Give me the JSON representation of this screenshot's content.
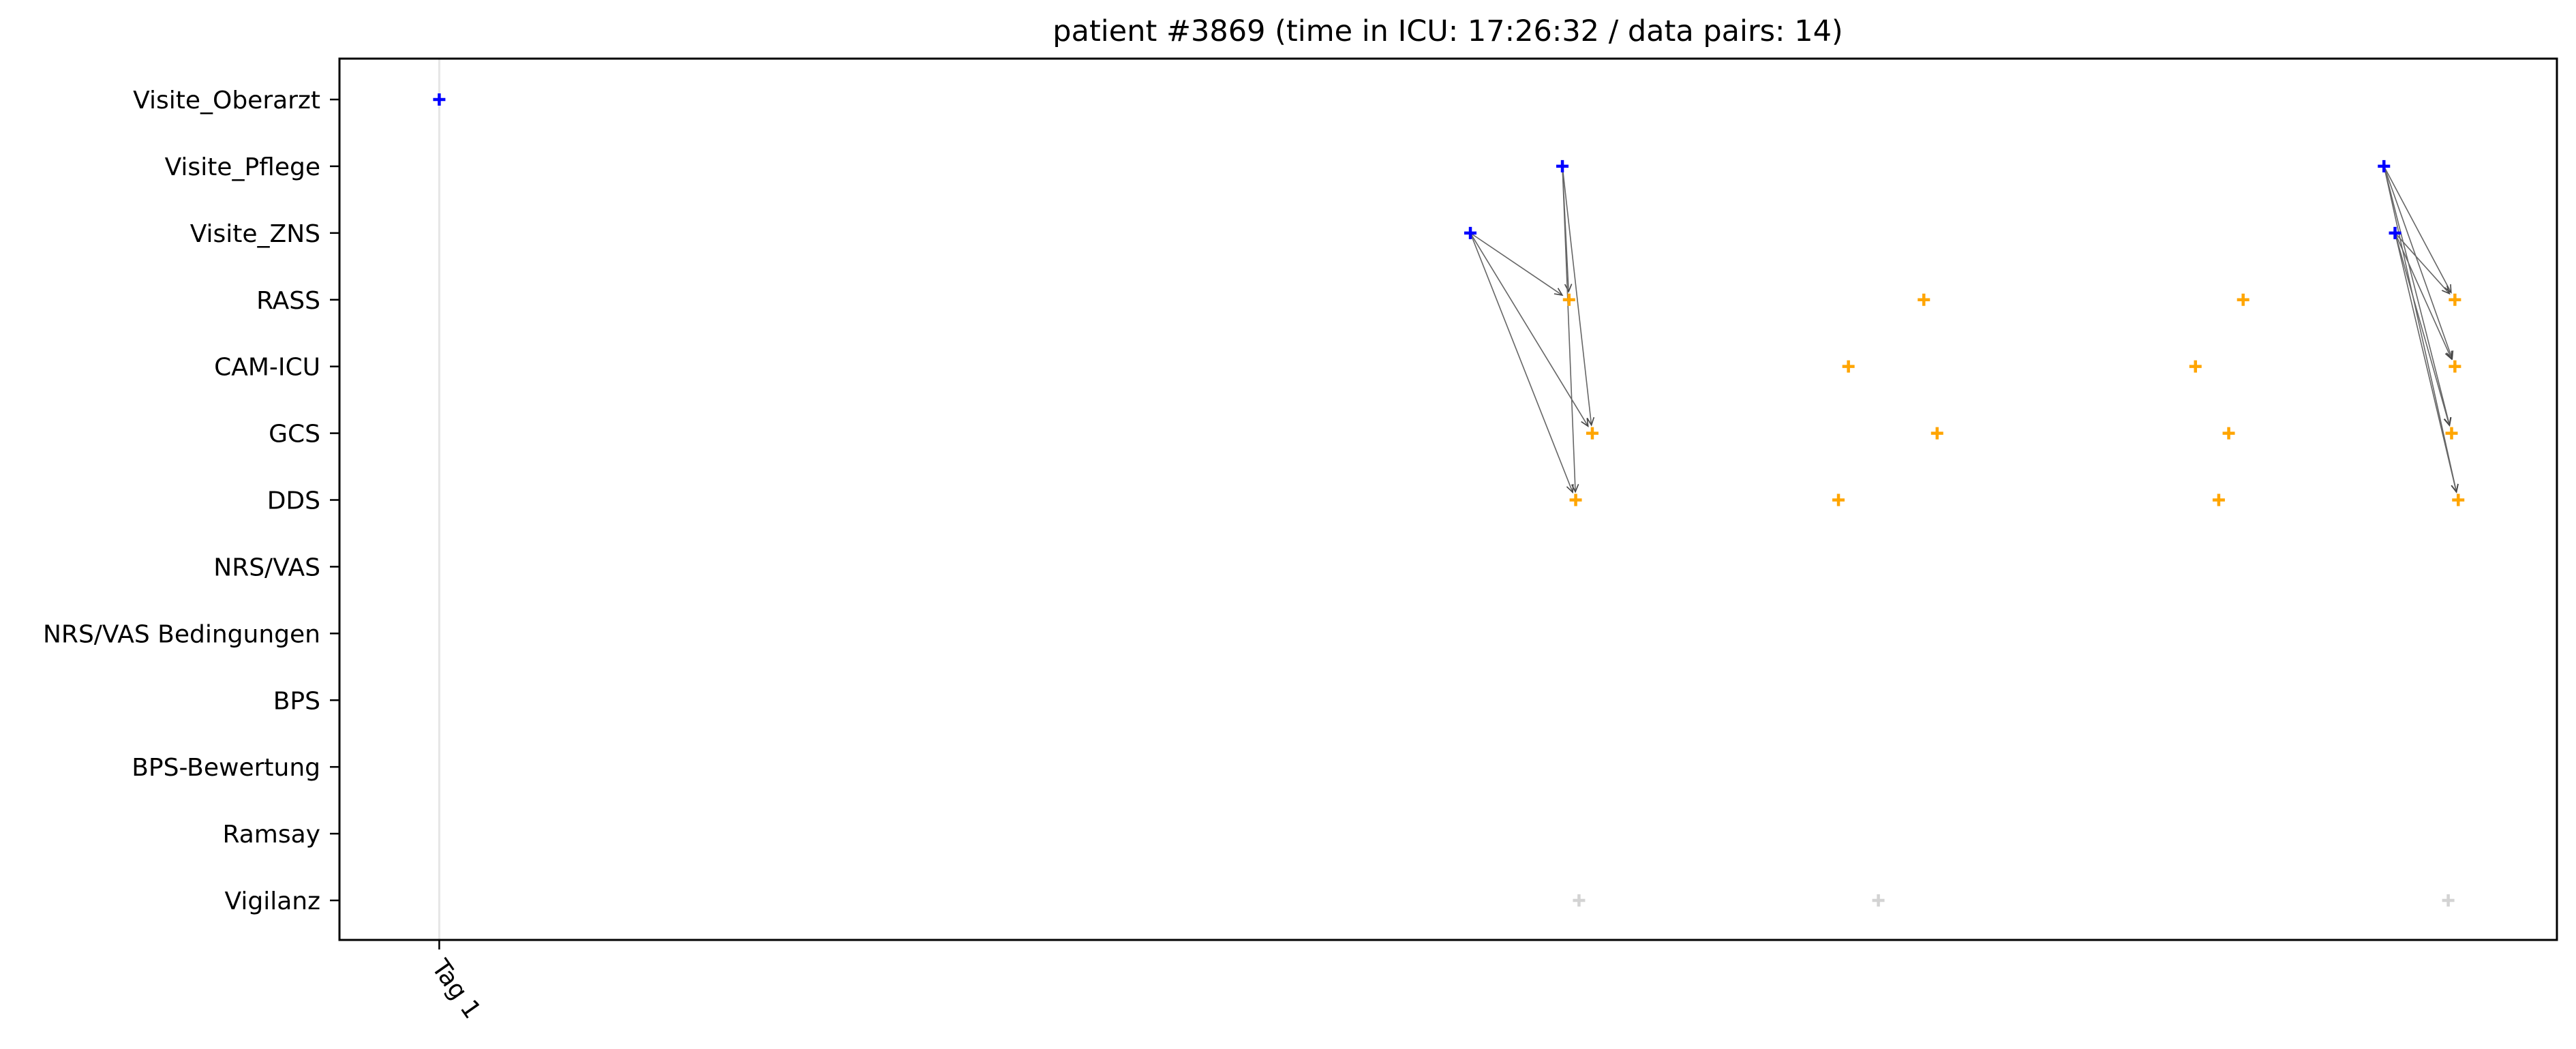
{
  "chart_data": {
    "type": "scatter",
    "title": "patient #3869 (time in ICU: 17:26:32 / data pairs: 14)",
    "xlabel": "",
    "ylabel": "",
    "x_unit": "days since ICU admission",
    "xlim": [
      -0.09,
      1.91
    ],
    "x_ticks": [
      {
        "value": 0.0,
        "label": "Tag 1"
      }
    ],
    "categories": [
      "Visite_Oberarzt",
      "Visite_Pflege",
      "Visite_ZNS",
      "RASS",
      "CAM-ICU",
      "GCS",
      "DDS",
      "NRS/VAS",
      "NRS/VAS Bedingungen",
      "BPS",
      "BPS-Bewertung",
      "Ramsay",
      "Vigilanz"
    ],
    "grid": false,
    "legend": "none",
    "vlines": [
      0.0
    ],
    "colors": {
      "visit": "#0000ff",
      "score": "#ffa500",
      "other": "#d3d3d3",
      "arrow": "#666666",
      "vline": "#e6e6e6"
    },
    "series": [
      {
        "name": "visits",
        "color": "#0000ff",
        "points": [
          {
            "x": 0.0,
            "y": "Visite_Oberarzt"
          },
          {
            "x": 1.013,
            "y": "Visite_Pflege"
          },
          {
            "x": 0.93,
            "y": "Visite_ZNS"
          },
          {
            "x": 1.754,
            "y": "Visite_Pflege"
          },
          {
            "x": 1.764,
            "y": "Visite_ZNS"
          }
        ]
      },
      {
        "name": "scores",
        "color": "#ffa500",
        "points": [
          {
            "x": 1.019,
            "y": "RASS"
          },
          {
            "x": 1.04,
            "y": "GCS"
          },
          {
            "x": 1.025,
            "y": "DDS"
          },
          {
            "x": 1.339,
            "y": "RASS"
          },
          {
            "x": 1.271,
            "y": "CAM-ICU"
          },
          {
            "x": 1.351,
            "y": "GCS"
          },
          {
            "x": 1.262,
            "y": "DDS"
          },
          {
            "x": 1.627,
            "y": "RASS"
          },
          {
            "x": 1.584,
            "y": "CAM-ICU"
          },
          {
            "x": 1.614,
            "y": "GCS"
          },
          {
            "x": 1.605,
            "y": "DDS"
          },
          {
            "x": 1.818,
            "y": "RASS"
          },
          {
            "x": 1.818,
            "y": "CAM-ICU"
          },
          {
            "x": 1.815,
            "y": "GCS"
          },
          {
            "x": 1.821,
            "y": "DDS"
          }
        ]
      },
      {
        "name": "vigilanz",
        "color": "#d3d3d3",
        "points": [
          {
            "x": 1.028,
            "y": "Vigilanz"
          },
          {
            "x": 1.298,
            "y": "Vigilanz"
          },
          {
            "x": 1.812,
            "y": "Vigilanz"
          }
        ]
      }
    ],
    "arrows": [
      {
        "from": {
          "x": 1.013,
          "y": "Visite_Pflege"
        },
        "to": {
          "x": 1.019,
          "y": "RASS"
        }
      },
      {
        "from": {
          "x": 1.013,
          "y": "Visite_Pflege"
        },
        "to": {
          "x": 1.04,
          "y": "GCS"
        }
      },
      {
        "from": {
          "x": 1.013,
          "y": "Visite_Pflege"
        },
        "to": {
          "x": 1.025,
          "y": "DDS"
        }
      },
      {
        "from": {
          "x": 0.93,
          "y": "Visite_ZNS"
        },
        "to": {
          "x": 1.019,
          "y": "RASS"
        }
      },
      {
        "from": {
          "x": 0.93,
          "y": "Visite_ZNS"
        },
        "to": {
          "x": 1.04,
          "y": "GCS"
        }
      },
      {
        "from": {
          "x": 0.93,
          "y": "Visite_ZNS"
        },
        "to": {
          "x": 1.025,
          "y": "DDS"
        }
      },
      {
        "from": {
          "x": 1.754,
          "y": "Visite_Pflege"
        },
        "to": {
          "x": 1.818,
          "y": "RASS"
        }
      },
      {
        "from": {
          "x": 1.754,
          "y": "Visite_Pflege"
        },
        "to": {
          "x": 1.818,
          "y": "CAM-ICU"
        }
      },
      {
        "from": {
          "x": 1.754,
          "y": "Visite_Pflege"
        },
        "to": {
          "x": 1.815,
          "y": "GCS"
        }
      },
      {
        "from": {
          "x": 1.754,
          "y": "Visite_Pflege"
        },
        "to": {
          "x": 1.821,
          "y": "DDS"
        }
      },
      {
        "from": {
          "x": 1.764,
          "y": "Visite_ZNS"
        },
        "to": {
          "x": 1.818,
          "y": "RASS"
        }
      },
      {
        "from": {
          "x": 1.764,
          "y": "Visite_ZNS"
        },
        "to": {
          "x": 1.818,
          "y": "CAM-ICU"
        }
      },
      {
        "from": {
          "x": 1.764,
          "y": "Visite_ZNS"
        },
        "to": {
          "x": 1.815,
          "y": "GCS"
        }
      },
      {
        "from": {
          "x": 1.764,
          "y": "Visite_ZNS"
        },
        "to": {
          "x": 1.821,
          "y": "DDS"
        }
      }
    ]
  }
}
